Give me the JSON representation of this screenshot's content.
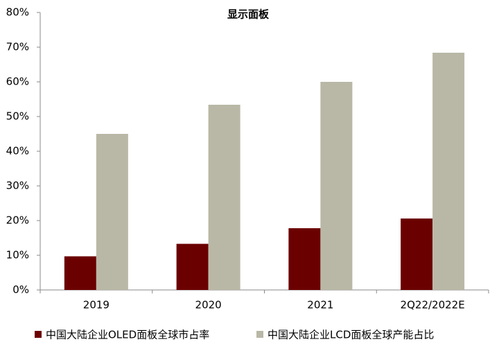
{
  "chart_data": {
    "type": "bar",
    "title": "显示面板",
    "categories": [
      "2019",
      "2020",
      "2021",
      "2Q22/2022E"
    ],
    "series": [
      {
        "name": "中国大陆企业OLED面板全球市占率",
        "color": "#6b0000",
        "values": [
          9.7,
          13.3,
          17.8,
          20.6
        ]
      },
      {
        "name": "中国大陆企业LCD面板全球产能占比",
        "color": "#b9b8a6",
        "values": [
          45,
          53.4,
          60,
          68.4
        ]
      }
    ],
    "ylim": [
      0,
      80
    ],
    "yticks": [
      {
        "value": 0,
        "label": "0%"
      },
      {
        "value": 10,
        "label": "10%"
      },
      {
        "value": 20,
        "label": "20%"
      },
      {
        "value": 30,
        "label": "30%"
      },
      {
        "value": 40,
        "label": "40%"
      },
      {
        "value": 50,
        "label": "50%"
      },
      {
        "value": 60,
        "label": "60%"
      },
      {
        "value": 70,
        "label": "70%"
      },
      {
        "value": 80,
        "label": "80%"
      }
    ],
    "legend": "bottom"
  }
}
